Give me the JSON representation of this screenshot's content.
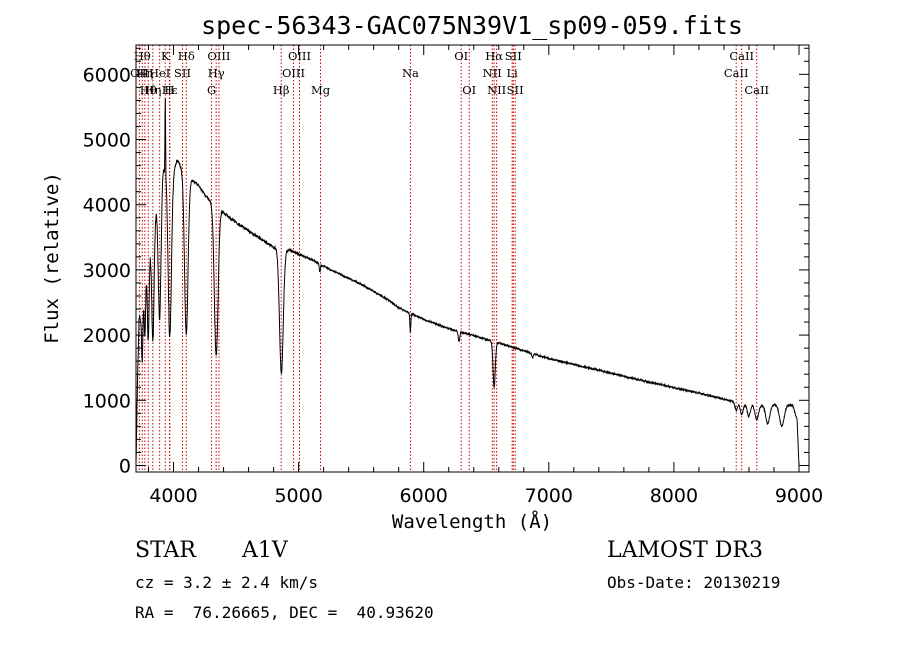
{
  "chart_data": {
    "type": "line",
    "title": "spec-56343-GAC075N39V1_sp09-059.fits",
    "xlabel": "Wavelength (Å)",
    "ylabel": "Flux (relative)",
    "xlim": [
      3700,
      9080
    ],
    "ylim": [
      -100,
      6450
    ],
    "xticks": [
      4000,
      5000,
      6000,
      7000,
      8000,
      9000
    ],
    "yticks": [
      0,
      1000,
      2000,
      3000,
      4000,
      5000,
      6000
    ],
    "grid": false,
    "series": [
      {
        "name": "spectrum",
        "continuum_points": [
          [
            3700,
            0
          ],
          [
            3712,
            1300
          ],
          [
            3725,
            2300
          ],
          [
            3745,
            2250
          ],
          [
            3770,
            2900
          ],
          [
            3800,
            3200
          ],
          [
            3840,
            3650
          ],
          [
            3880,
            4150
          ],
          [
            3920,
            4600
          ],
          [
            3960,
            4500
          ],
          [
            4000,
            4520
          ],
          [
            4030,
            4680
          ],
          [
            4080,
            4520
          ],
          [
            4120,
            4430
          ],
          [
            4200,
            4300
          ],
          [
            4250,
            4150
          ],
          [
            4300,
            4050
          ],
          [
            4380,
            3920
          ],
          [
            4450,
            3800
          ],
          [
            4600,
            3600
          ],
          [
            4700,
            3470
          ],
          [
            4800,
            3350
          ],
          [
            4860,
            3320
          ],
          [
            4950,
            3280
          ],
          [
            5100,
            3160
          ],
          [
            5300,
            2960
          ],
          [
            5500,
            2780
          ],
          [
            5700,
            2560
          ],
          [
            5800,
            2420
          ],
          [
            6000,
            2240
          ],
          [
            6200,
            2100
          ],
          [
            6400,
            1990
          ],
          [
            6600,
            1880
          ],
          [
            6800,
            1760
          ],
          [
            7000,
            1640
          ],
          [
            7400,
            1460
          ],
          [
            7800,
            1280
          ],
          [
            8200,
            1110
          ],
          [
            8500,
            970
          ],
          [
            8600,
            940
          ],
          [
            8700,
            920
          ],
          [
            8800,
            930
          ],
          [
            8950,
            920
          ],
          [
            8985,
            700
          ],
          [
            9000,
            0
          ]
        ],
        "absorption_lines": [
          {
            "center": 3750,
            "depth": 800,
            "width": 5
          },
          {
            "center": 3771,
            "depth": 900,
            "width": 6
          },
          {
            "center": 3798,
            "depth": 1250,
            "width": 7
          },
          {
            "center": 3835,
            "depth": 1700,
            "width": 9
          },
          {
            "center": 3889,
            "depth": 2000,
            "width": 11
          },
          {
            "center": 3934,
            "depth": 800,
            "width": 4
          },
          {
            "center": 3970,
            "depth": 2550,
            "width": 13
          },
          {
            "center": 4102,
            "depth": 2450,
            "width": 14
          },
          {
            "center": 4341,
            "depth": 2300,
            "width": 15
          },
          {
            "center": 4862,
            "depth": 1900,
            "width": 15
          },
          {
            "center": 5170,
            "depth": 120,
            "width": 5
          },
          {
            "center": 5893,
            "depth": 280,
            "width": 4
          },
          {
            "center": 6282,
            "depth": 150,
            "width": 6
          },
          {
            "center": 6563,
            "depth": 700,
            "width": 9
          },
          {
            "center": 6870,
            "depth": 60,
            "width": 6
          },
          {
            "center": 8498,
            "depth": 120,
            "width": 10
          },
          {
            "center": 8542,
            "depth": 170,
            "width": 12
          },
          {
            "center": 8598,
            "depth": 190,
            "width": 12
          },
          {
            "center": 8662,
            "depth": 220,
            "width": 14
          },
          {
            "center": 8750,
            "depth": 280,
            "width": 16
          },
          {
            "center": 8863,
            "depth": 320,
            "width": 18
          }
        ],
        "emission_spikes": [
          {
            "center": 3934,
            "height": 1900
          }
        ]
      }
    ],
    "line_markers": [
      {
        "x": 3727,
        "label": "OII",
        "row": 1
      },
      {
        "x": 3750,
        "label": "Hθ",
        "row": 0
      },
      {
        "x": 3771,
        "label": "Hη",
        "row": 1
      },
      {
        "x": 3798,
        "label": "Hθ",
        "row": 2
      },
      {
        "x": 3835,
        "label": "Hη",
        "row": 2
      },
      {
        "x": 3889,
        "label": "HeI",
        "row": 1
      },
      {
        "x": 3934,
        "label": "K",
        "row": 0
      },
      {
        "x": 3968,
        "label": "H",
        "row": 2
      },
      {
        "x": 3970,
        "label": "Hε",
        "row": 2
      },
      {
        "x": 4072,
        "label": "SII",
        "row": 1
      },
      {
        "x": 4102,
        "label": "Hδ",
        "row": 0
      },
      {
        "x": 4304,
        "label": "G",
        "row": 2
      },
      {
        "x": 4341,
        "label": "Hγ",
        "row": 1
      },
      {
        "x": 4363,
        "label": "OIII",
        "row": 0
      },
      {
        "x": 4861,
        "label": "Hβ",
        "row": 2
      },
      {
        "x": 4959,
        "label": "OIII",
        "row": 1
      },
      {
        "x": 5007,
        "label": "OIII",
        "row": 0
      },
      {
        "x": 5175,
        "label": "Mg",
        "row": 2
      },
      {
        "x": 5894,
        "label": "Na",
        "row": 1
      },
      {
        "x": 6300,
        "label": "OI",
        "row": 0
      },
      {
        "x": 6364,
        "label": "OI",
        "row": 2
      },
      {
        "x": 6548,
        "label": "NII",
        "row": 1
      },
      {
        "x": 6563,
        "label": "Hα",
        "row": 0
      },
      {
        "x": 6583,
        "label": "NII",
        "row": 2
      },
      {
        "x": 6707,
        "label": "Li",
        "row": 1
      },
      {
        "x": 6716,
        "label": "SII",
        "row": 0
      },
      {
        "x": 6731,
        "label": "SII",
        "row": 2
      },
      {
        "x": 8498,
        "label": "CaII",
        "row": 1
      },
      {
        "x": 8542,
        "label": "CaII",
        "row": 0
      },
      {
        "x": 8662,
        "label": "CaII",
        "row": 2
      }
    ]
  },
  "info": {
    "class_label": "STAR",
    "subclass": "A1V",
    "survey": "LAMOST DR3",
    "redshift": "cz = 3.2 ± 2.4 km/s",
    "obs_date": "Obs-Date: 20130219",
    "coords": "RA =  76.26665, DEC =  40.93620"
  },
  "colors": {
    "marker": "#cc0000",
    "ink": "#000000",
    "background": "#ffffff"
  }
}
